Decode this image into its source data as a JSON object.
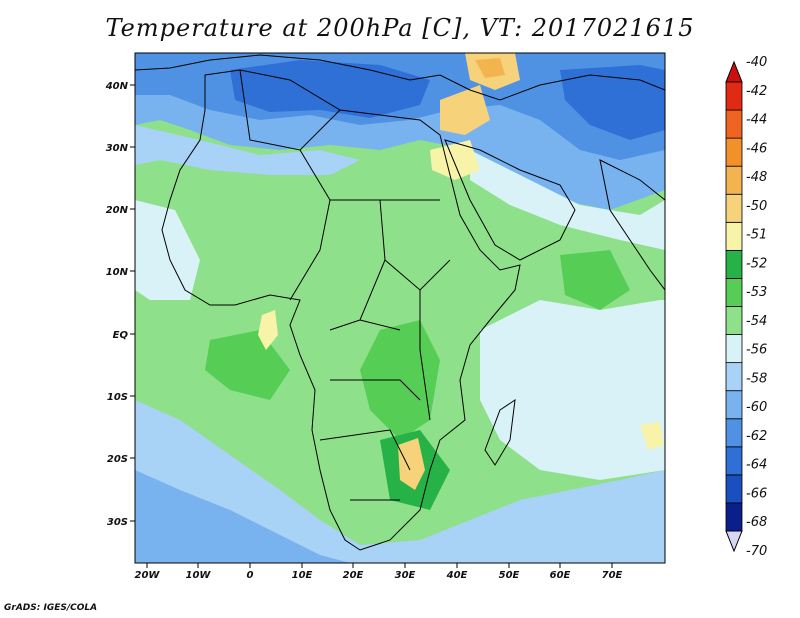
{
  "title": "Temperature at 200hPa [C], VT: 2017021615",
  "footer": "GrADS: IGES/COLA",
  "map": {
    "lat_labels": [
      "40N",
      "30N",
      "20N",
      "10N",
      "EQ",
      "10S",
      "20S",
      "30S"
    ],
    "lon_labels": [
      "20W",
      "10W",
      "0",
      "10E",
      "20E",
      "30E",
      "40E",
      "50E",
      "60E",
      "70E"
    ]
  },
  "colorbar": {
    "colors": [
      "#0a1f8c",
      "#1a4fc0",
      "#2e70d6",
      "#4f92e4",
      "#78b2ef",
      "#a8d2f6",
      "#d8f2f7",
      "#8fe08a",
      "#56ce56",
      "#27b247",
      "#f7f3a8",
      "#f6d37a",
      "#f3b34e",
      "#f2902a",
      "#ee6420",
      "#e02a14"
    ],
    "labels": [
      "-70",
      "-68",
      "-66",
      "-64",
      "-62",
      "-60",
      "-58",
      "-56",
      "-54",
      "-53",
      "-52",
      "-51",
      "-50",
      "-48",
      "-46",
      "-44",
      "-42",
      "-40"
    ],
    "under_color": "#d8d6f2",
    "over_color": "#cc1010"
  }
}
